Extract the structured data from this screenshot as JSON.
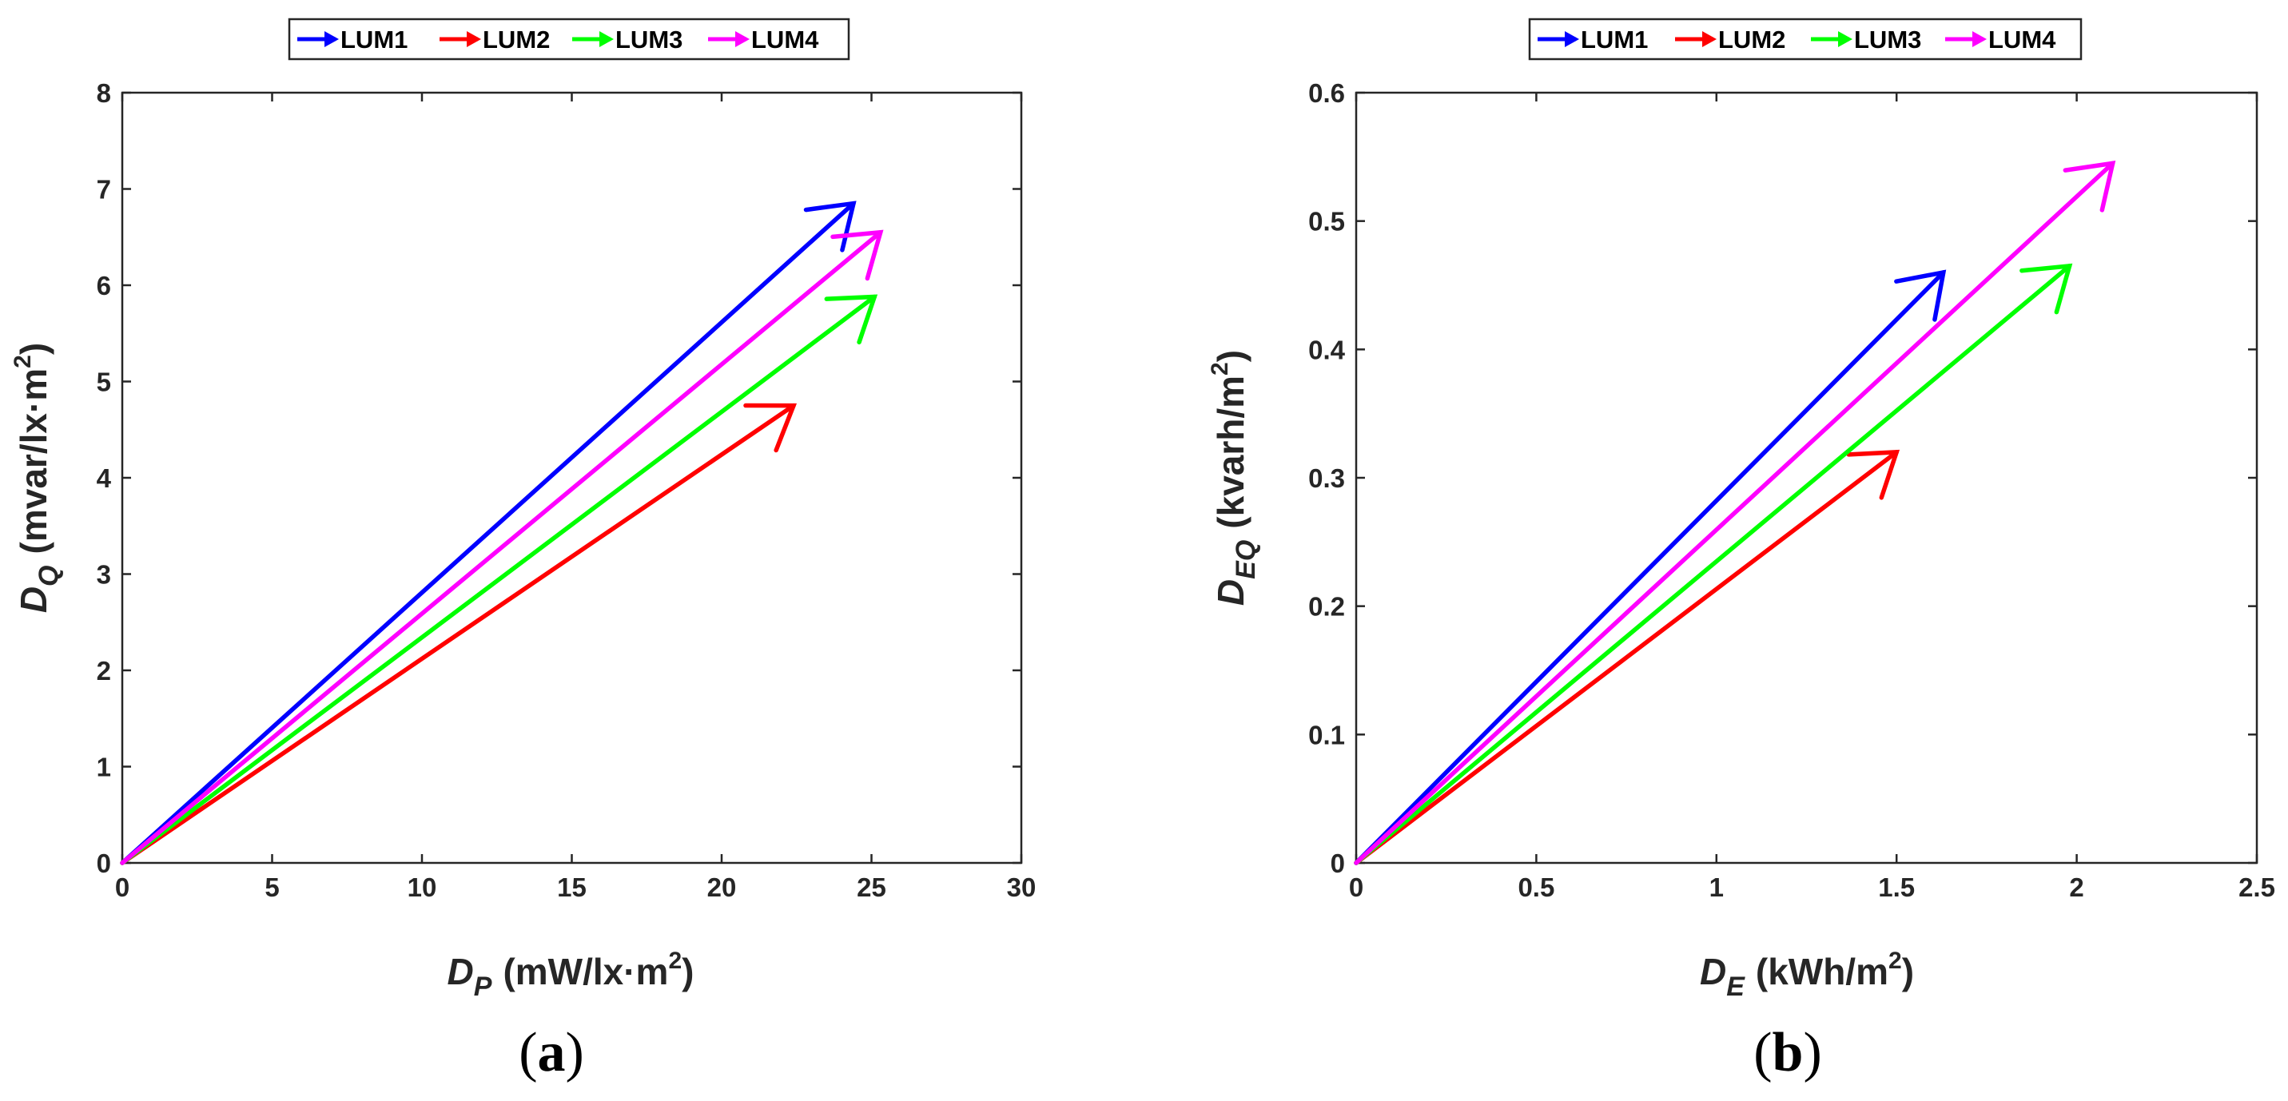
{
  "chart_data": [
    {
      "type": "quiver",
      "panel_label": "(a)",
      "legend": [
        "LUM1",
        "LUM2",
        "LUM3",
        "LUM4"
      ],
      "legend_position": "top-center outside",
      "xlabel": {
        "symbol": "D",
        "subscript": "P",
        "units": "(mW/lx·m",
        "sup": "2",
        "close": ")"
      },
      "ylabel": {
        "symbol": "D",
        "subscript": "Q",
        "units": "(mvar/lx·m",
        "sup": "2",
        "close": ")"
      },
      "xlim": [
        0,
        30
      ],
      "ylim": [
        0,
        8
      ],
      "xticks": [
        0,
        5,
        10,
        15,
        20,
        25,
        30
      ],
      "xtick_labels": [
        "0",
        "5",
        "10",
        "15",
        "20",
        "25",
        "30"
      ],
      "yticks": [
        0,
        1,
        2,
        3,
        4,
        5,
        6,
        7,
        8
      ],
      "ytick_labels": [
        "0",
        "1",
        "2",
        "3",
        "4",
        "5",
        "6",
        "7",
        "8"
      ],
      "series": [
        {
          "name": "LUM1",
          "color": "#0000ff",
          "start": [
            0,
            0
          ],
          "end": [
            24.4,
            6.85
          ]
        },
        {
          "name": "LUM2",
          "color": "#ff0000",
          "start": [
            0,
            0
          ],
          "end": [
            22.4,
            4.75
          ]
        },
        {
          "name": "LUM3",
          "color": "#00ff00",
          "start": [
            0,
            0
          ],
          "end": [
            25.1,
            5.88
          ]
        },
        {
          "name": "LUM4",
          "color": "#ff00ff",
          "start": [
            0,
            0
          ],
          "end": [
            25.3,
            6.55
          ]
        }
      ]
    },
    {
      "type": "quiver",
      "panel_label": "(b)",
      "legend": [
        "LUM1",
        "LUM2",
        "LUM3",
        "LUM4"
      ],
      "legend_position": "top-center outside",
      "xlabel": {
        "symbol": "D",
        "subscript": "E",
        "units": "(kWh/m",
        "sup": "2",
        "close": ")"
      },
      "ylabel": {
        "symbol": "D",
        "subscript": "EQ",
        "units": "(kvarh/m",
        "sup": "2",
        "close": ")"
      },
      "xlim": [
        0,
        2.5
      ],
      "ylim": [
        0,
        0.6
      ],
      "xticks": [
        0,
        0.5,
        1,
        1.5,
        2,
        2.5
      ],
      "xtick_labels": [
        "0",
        "0.5",
        "1",
        "1.5",
        "2",
        "2.5"
      ],
      "yticks": [
        0,
        0.1,
        0.2,
        0.3,
        0.4,
        0.5,
        0.6
      ],
      "ytick_labels": [
        "0",
        "0.1",
        "0.2",
        "0.3",
        "0.4",
        "0.5",
        "0.6"
      ],
      "series": [
        {
          "name": "LUM1",
          "color": "#0000ff",
          "start": [
            0,
            0
          ],
          "end": [
            1.63,
            0.46
          ]
        },
        {
          "name": "LUM2",
          "color": "#ff0000",
          "start": [
            0,
            0
          ],
          "end": [
            1.5,
            0.32
          ]
        },
        {
          "name": "LUM3",
          "color": "#00ff00",
          "start": [
            0,
            0
          ],
          "end": [
            1.98,
            0.465
          ]
        },
        {
          "name": "LUM4",
          "color": "#ff00ff",
          "start": [
            0,
            0
          ],
          "end": [
            2.1,
            0.545
          ]
        }
      ]
    }
  ]
}
